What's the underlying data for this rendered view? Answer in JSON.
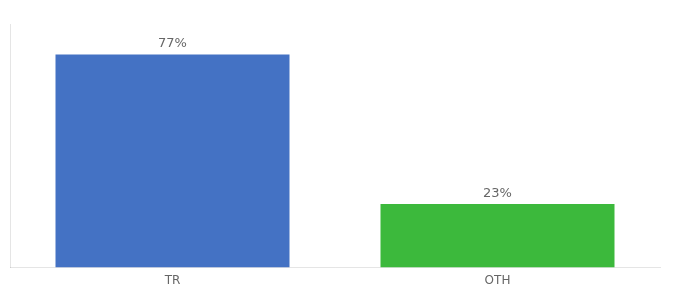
{
  "chart_data": {
    "type": "bar",
    "categories": [
      "TR",
      "OTH"
    ],
    "values": [
      77,
      23
    ],
    "value_labels": [
      "77%",
      "23%"
    ],
    "colors": [
      "#4472C4",
      "#3CB93C"
    ],
    "ylim": [
      0,
      88
    ],
    "data_labels": true,
    "tick_labels": "x",
    "grid": false
  }
}
